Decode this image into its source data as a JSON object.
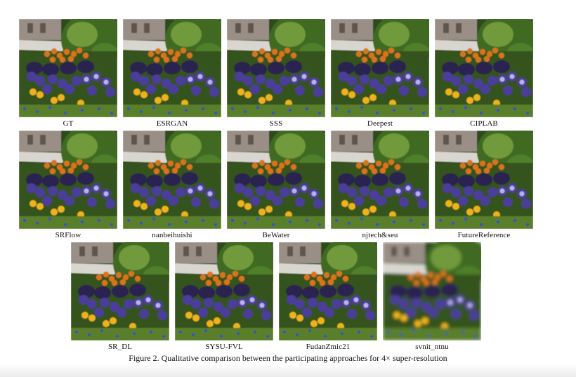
{
  "figure": {
    "rows": [
      {
        "panels": [
          {
            "label": "GT"
          },
          {
            "label": "ESRGAN"
          },
          {
            "label": "SSS"
          },
          {
            "label": "Deepest"
          },
          {
            "label": "CIPLAB"
          }
        ]
      },
      {
        "panels": [
          {
            "label": "SRFlow"
          },
          {
            "label": "nanbeihuishi"
          },
          {
            "label": "BeWater"
          },
          {
            "label": "njtech&seu"
          },
          {
            "label": "FutureReference"
          }
        ]
      },
      {
        "panels": [
          {
            "label": "SR_DL"
          },
          {
            "label": "SYSU-FVL"
          },
          {
            "label": "FudanZmic21"
          },
          {
            "label": "svnit_ntnu"
          }
        ]
      }
    ],
    "caption": "Figure 2. Qualitative comparison between the participating approaches for 4× super-resolution"
  },
  "colors": {
    "background": "#ffffff",
    "foliage_dark": "#2f4a1c",
    "foliage_light": "#6f9a3a",
    "wall": "#9a8f86",
    "path": "#d9d6cf",
    "orange_flowers": "#d9731d",
    "purple_flowers": "#4b3c9a",
    "yellow_flowers": "#f0b21c"
  }
}
